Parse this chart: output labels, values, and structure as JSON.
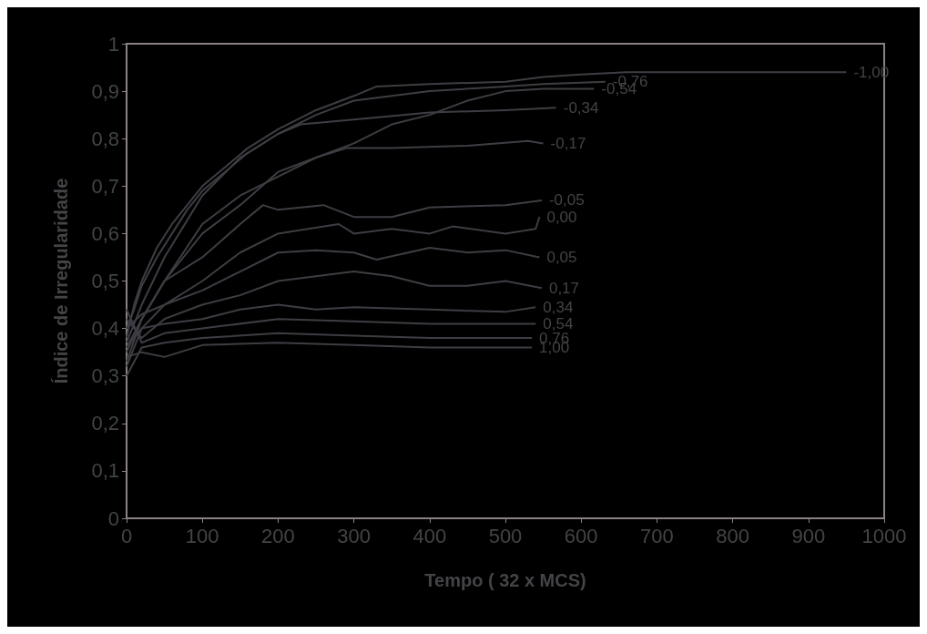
{
  "chart_data": {
    "type": "line",
    "xlabel": "Tempo ( 32 x MCS)",
    "ylabel": "Índice de Irregularidade",
    "xlim": [
      0,
      1000
    ],
    "xticks": [
      0,
      100,
      200,
      300,
      400,
      500,
      600,
      700,
      800,
      900,
      1000
    ],
    "ylim": [
      0,
      1
    ],
    "yticks": [
      0,
      {
        "value": 0.1,
        "label": "0,1"
      },
      {
        "value": 0.2,
        "label": "0,2"
      },
      {
        "value": 0.3,
        "label": "0,3"
      },
      {
        "value": 0.4,
        "label": "0,4"
      },
      {
        "value": 0.5,
        "label": "0,5"
      },
      {
        "value": 0.6,
        "label": "0,6"
      },
      {
        "value": 0.7,
        "label": "0,7"
      },
      {
        "value": 0.8,
        "label": "0,8"
      },
      {
        "value": 0.9,
        "label": "0,9"
      },
      1
    ],
    "grid": false,
    "legend": false,
    "marker": "none",
    "line_style": "solid",
    "series": [
      {
        "name": "-1,00",
        "color": "#3e3d43",
        "x": [
          0,
          10,
          20,
          40,
          60,
          80,
          100,
          130,
          160,
          200,
          250,
          300,
          330,
          400,
          500,
          550,
          600,
          660,
          950
        ],
        "values": [
          0.38,
          0.45,
          0.5,
          0.57,
          0.62,
          0.66,
          0.7,
          0.74,
          0.78,
          0.82,
          0.86,
          0.89,
          0.91,
          0.915,
          0.92,
          0.93,
          0.935,
          0.94,
          0.94
        ]
      },
      {
        "name": "-0,76",
        "color": "#3e3d43",
        "x": [
          0,
          10,
          20,
          40,
          60,
          80,
          100,
          130,
          160,
          200,
          250,
          300,
          400,
          500,
          550,
          632
        ],
        "values": [
          0.4,
          0.44,
          0.49,
          0.55,
          0.6,
          0.65,
          0.69,
          0.73,
          0.77,
          0.81,
          0.85,
          0.88,
          0.9,
          0.91,
          0.915,
          0.92
        ]
      },
      {
        "name": "-0,54",
        "color": "#3e3d43",
        "x": [
          0,
          20,
          50,
          100,
          150,
          200,
          250,
          300,
          350,
          400,
          450,
          500,
          550,
          617
        ],
        "values": [
          0.35,
          0.42,
          0.5,
          0.62,
          0.68,
          0.72,
          0.76,
          0.79,
          0.83,
          0.85,
          0.88,
          0.9,
          0.905,
          0.905
        ]
      },
      {
        "name": "-0,34",
        "color": "#3e3d43",
        "x": [
          0,
          20,
          50,
          100,
          150,
          200,
          230,
          300,
          400,
          500,
          567
        ],
        "values": [
          0.37,
          0.45,
          0.55,
          0.68,
          0.76,
          0.81,
          0.83,
          0.84,
          0.855,
          0.86,
          0.865
        ]
      },
      {
        "name": "-0,17",
        "color": "#3e3d43",
        "x": [
          0,
          20,
          50,
          100,
          150,
          200,
          250,
          290,
          350,
          450,
          530,
          550
        ],
        "values": [
          0.33,
          0.42,
          0.5,
          0.6,
          0.66,
          0.73,
          0.76,
          0.78,
          0.78,
          0.785,
          0.795,
          0.79
        ]
      },
      {
        "name": "-0,05",
        "color": "#3e3d43",
        "x": [
          0,
          20,
          50,
          100,
          150,
          180,
          200,
          260,
          300,
          350,
          400,
          500,
          548
        ],
        "values": [
          0.36,
          0.42,
          0.5,
          0.55,
          0.62,
          0.66,
          0.65,
          0.66,
          0.635,
          0.635,
          0.655,
          0.66,
          0.67
        ]
      },
      {
        "name": "0,00",
        "color": "#3e3d43",
        "x": [
          0,
          20,
          50,
          100,
          150,
          200,
          280,
          300,
          350,
          400,
          430,
          500,
          540,
          545
        ],
        "values": [
          0.4,
          0.43,
          0.45,
          0.5,
          0.56,
          0.6,
          0.62,
          0.6,
          0.61,
          0.6,
          0.615,
          0.6,
          0.61,
          0.635
        ]
      },
      {
        "name": "0,05",
        "color": "#3e3d43",
        "x": [
          0,
          20,
          50,
          100,
          150,
          200,
          250,
          300,
          330,
          400,
          450,
          500,
          545
        ],
        "values": [
          0.32,
          0.4,
          0.45,
          0.48,
          0.52,
          0.56,
          0.565,
          0.56,
          0.545,
          0.57,
          0.56,
          0.565,
          0.55
        ]
      },
      {
        "name": "0,17",
        "color": "#3e3d43",
        "x": [
          0,
          20,
          50,
          100,
          150,
          200,
          300,
          350,
          400,
          450,
          500,
          548
        ],
        "values": [
          0.42,
          0.38,
          0.42,
          0.45,
          0.47,
          0.5,
          0.52,
          0.51,
          0.49,
          0.49,
          0.5,
          0.485
        ]
      },
      {
        "name": "0,34",
        "color": "#3e3d43",
        "x": [
          0,
          20,
          50,
          100,
          150,
          200,
          250,
          300,
          400,
          500,
          540
        ],
        "values": [
          0.36,
          0.4,
          0.41,
          0.42,
          0.44,
          0.45,
          0.44,
          0.445,
          0.44,
          0.435,
          0.445
        ]
      },
      {
        "name": "0,54",
        "color": "#3e3d43",
        "x": [
          0,
          20,
          50,
          100,
          200,
          300,
          400,
          500,
          540
        ],
        "values": [
          0.44,
          0.37,
          0.39,
          0.4,
          0.42,
          0.415,
          0.41,
          0.41,
          0.41
        ]
      },
      {
        "name": "0,76",
        "color": "#3e3d43",
        "x": [
          0,
          20,
          50,
          100,
          200,
          300,
          400,
          500,
          535
        ],
        "values": [
          0.3,
          0.36,
          0.37,
          0.38,
          0.39,
          0.385,
          0.38,
          0.38,
          0.38
        ]
      },
      {
        "name": "1,00",
        "color": "#3e3d43",
        "x": [
          0,
          20,
          50,
          100,
          200,
          300,
          400,
          500,
          535
        ],
        "values": [
          0.34,
          0.35,
          0.34,
          0.365,
          0.37,
          0.365,
          0.36,
          0.36,
          0.36
        ]
      }
    ]
  }
}
